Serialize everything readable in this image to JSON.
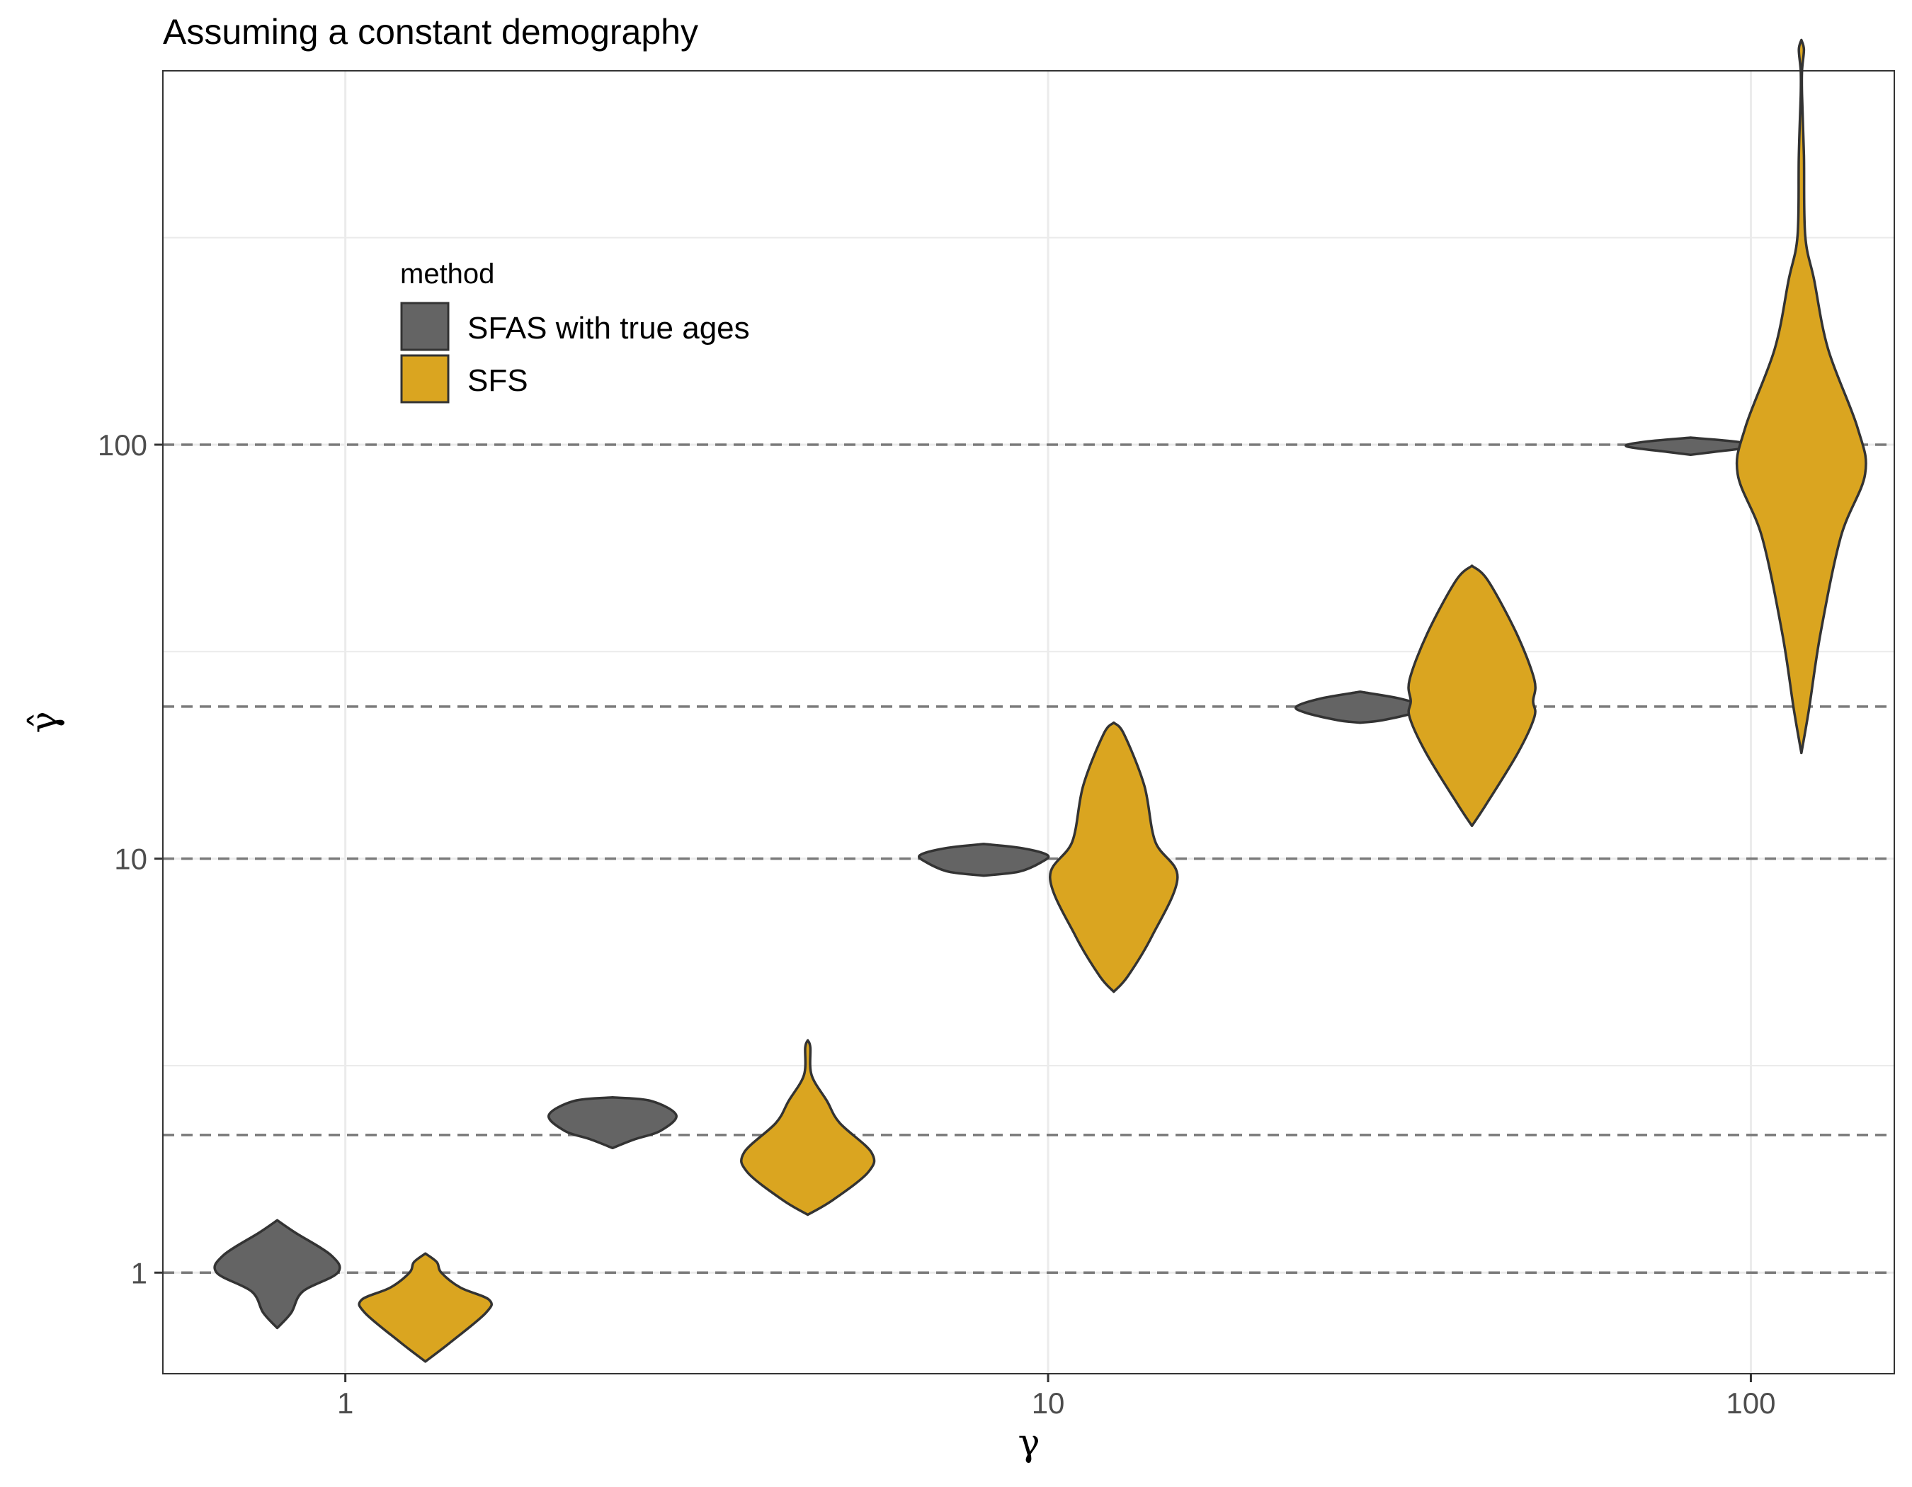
{
  "chart_data": {
    "type": "violin",
    "title": "Assuming a constant demography",
    "xlabel": "γ",
    "ylabel": "γ̂",
    "xscale": "log10",
    "yscale": "log10",
    "xlim": [
      0.55,
      160
    ],
    "ylim": [
      0.57,
      800
    ],
    "x_ticks": [
      1,
      10,
      100
    ],
    "x_tick_labels": [
      "1",
      "10",
      "100"
    ],
    "y_ticks": [
      1,
      10,
      100
    ],
    "y_tick_labels": [
      "1",
      "10",
      "100"
    ],
    "grid": true,
    "true_gamma_reference_lines": [
      1,
      2.15,
      10,
      23.3,
      100
    ],
    "legend": {
      "title": "method",
      "position": "top-left",
      "entries": [
        {
          "label": "SFAS with true ages",
          "color": "#646464"
        },
        {
          "label": "SFS",
          "color": "#daa520"
        }
      ]
    },
    "series": [
      {
        "name": "SFAS with true ages",
        "color": "#646464",
        "violins": [
          {
            "true_gamma": 1,
            "x_center": 0.8,
            "profile": [
              [
                0.735,
                0.0
              ],
              [
                0.8,
                0.22
              ],
              [
                0.9,
                0.4
              ],
              [
                1.0,
                0.95
              ],
              [
                1.1,
                0.85
              ],
              [
                1.25,
                0.28
              ],
              [
                1.338,
                0.0
              ]
            ]
          },
          {
            "true_gamma": 2.15,
            "x_center": 2.4,
            "profile": [
              [
                2.0,
                0.0
              ],
              [
                2.1,
                0.35
              ],
              [
                2.2,
                0.75
              ],
              [
                2.4,
                1.0
              ],
              [
                2.6,
                0.6
              ],
              [
                2.65,
                0.0
              ]
            ]
          },
          {
            "true_gamma": 10,
            "x_center": 8.1,
            "profile": [
              [
                9.1,
                0.0
              ],
              [
                9.3,
                0.55
              ],
              [
                9.8,
                0.9
              ],
              [
                10.2,
                1.0
              ],
              [
                10.6,
                0.6
              ],
              [
                10.85,
                0.0
              ]
            ]
          },
          {
            "true_gamma": 23.3,
            "x_center": 27.8,
            "profile": [
              [
                21.3,
                0.0
              ],
              [
                21.6,
                0.35
              ],
              [
                22.5,
                0.85
              ],
              [
                23.3,
                1.0
              ],
              [
                24.4,
                0.6
              ],
              [
                25.3,
                0.0
              ]
            ]
          },
          {
            "true_gamma": 100,
            "x_center": 82.1,
            "profile": [
              [
                94.5,
                0.0
              ],
              [
                96.0,
                0.35
              ],
              [
                99.0,
                1.0
              ],
              [
                101.5,
                0.75
              ],
              [
                104.0,
                0.0
              ]
            ]
          }
        ]
      },
      {
        "name": "SFS",
        "color": "#daa520",
        "violins": [
          {
            "true_gamma": 1,
            "x_center": 1.3,
            "profile": [
              [
                0.61,
                0.0
              ],
              [
                0.68,
                0.4
              ],
              [
                0.8,
                0.95
              ],
              [
                0.86,
                1.0
              ],
              [
                0.92,
                0.55
              ],
              [
                1.0,
                0.25
              ],
              [
                1.06,
                0.18
              ],
              [
                1.112,
                0.0
              ]
            ]
          },
          {
            "true_gamma": 2.15,
            "x_center": 4.55,
            "profile": [
              [
                1.38,
                0.0
              ],
              [
                1.5,
                0.4
              ],
              [
                1.75,
                0.95
              ],
              [
                1.95,
                1.0
              ],
              [
                2.3,
                0.5
              ],
              [
                2.6,
                0.3
              ],
              [
                3.0,
                0.06
              ],
              [
                3.5,
                0.04
              ],
              [
                3.64,
                0.0
              ]
            ]
          },
          {
            "true_gamma": 10,
            "x_center": 12.4,
            "profile": [
              [
                4.77,
                0.0
              ],
              [
                5.2,
                0.22
              ],
              [
                6.5,
                0.6
              ],
              [
                9.0,
                1.0
              ],
              [
                11.0,
                0.65
              ],
              [
                15.0,
                0.48
              ],
              [
                20.0,
                0.16
              ],
              [
                21.3,
                0.0
              ]
            ]
          },
          {
            "true_gamma": 23.3,
            "x_center": 40.1,
            "profile": [
              [
                12.0,
                0.0
              ],
              [
                13.5,
                0.22
              ],
              [
                18.0,
                0.72
              ],
              [
                22.0,
                0.98
              ],
              [
                24.0,
                0.96
              ],
              [
                27.0,
                0.98
              ],
              [
                35.0,
                0.7
              ],
              [
                47.0,
                0.25
              ],
              [
                51.0,
                0.0
              ]
            ]
          },
          {
            "true_gamma": 100,
            "x_center": 118,
            "profile": [
              [
                18.0,
                0.0
              ],
              [
                23.0,
                0.12
              ],
              [
                35.0,
                0.3
              ],
              [
                60.0,
                0.62
              ],
              [
                85.0,
                1.0
              ],
              [
                110.0,
                0.88
              ],
              [
                170.0,
                0.42
              ],
              [
                250.0,
                0.2
              ],
              [
                320.0,
                0.06
              ],
              [
                500.0,
                0.04
              ],
              [
                700.0,
                0.01
              ],
              [
                800.0,
                0.01
              ],
              [
                900.0,
                0.04
              ],
              [
                950.0,
                0.0
              ]
            ]
          }
        ]
      }
    ]
  }
}
